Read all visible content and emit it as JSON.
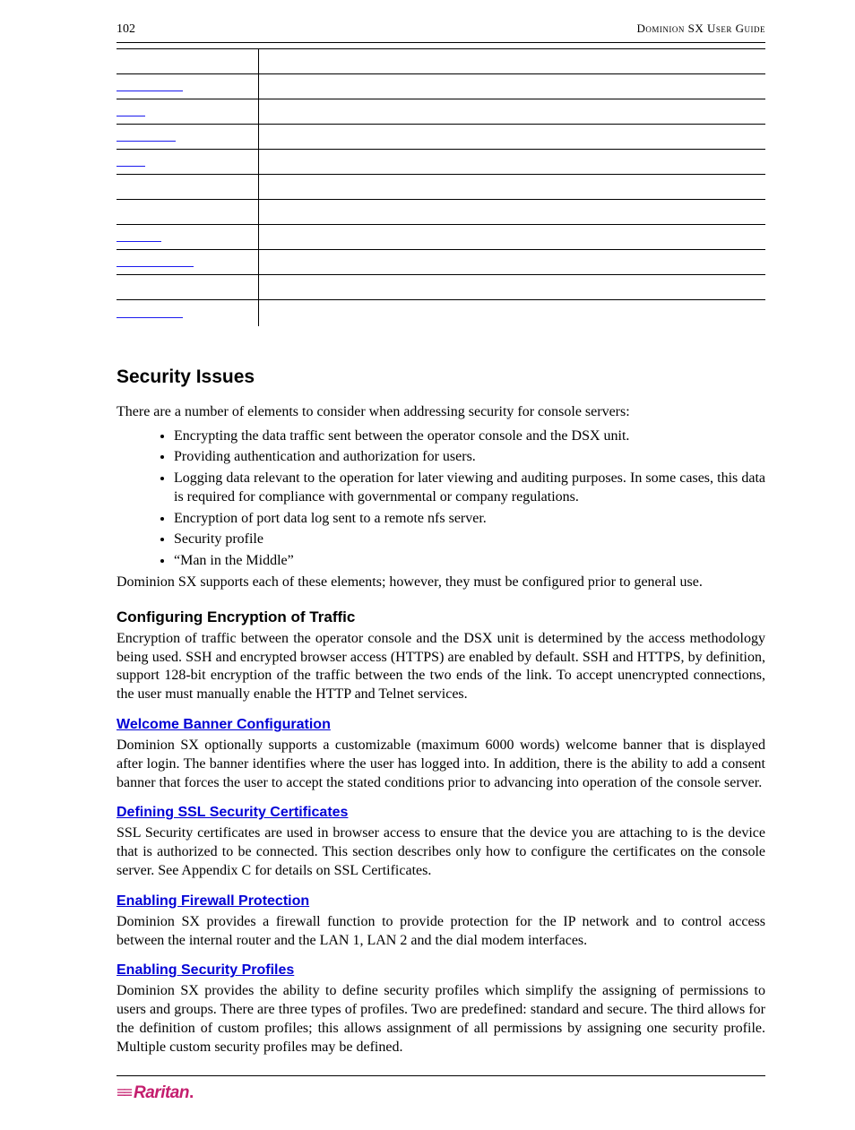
{
  "header": {
    "page_number": "102",
    "guide_title": "Dominion SX User Guide"
  },
  "table_rows": [
    {
      "link_width": 0
    },
    {
      "link_width": 74
    },
    {
      "link_width": 32
    },
    {
      "link_width": 66
    },
    {
      "link_width": 32
    },
    {
      "link_width": 0
    },
    {
      "link_width": 0
    },
    {
      "link_width": 50
    },
    {
      "link_width": 86
    },
    {
      "link_width": 0
    },
    {
      "link_width": 74
    }
  ],
  "section_heading": "Security Issues",
  "intro": "There are a number of elements to consider when addressing security for console servers:",
  "bullets": [
    "Encrypting the data traffic sent between the operator console and the DSX unit.",
    "Providing authentication and authorization for users.",
    "Logging data relevant to the operation for later viewing and auditing purposes. In some cases, this data is required for compliance with governmental or company regulations.",
    "Encryption of port data log sent to a remote nfs server.",
    "Security profile",
    "“Man in the Middle”"
  ],
  "after_bullets": "Dominion SX supports each of these elements; however, they must be configured prior to general use.",
  "subsections": [
    {
      "heading": "Configuring Encryption of Traffic",
      "is_link": false,
      "body": "Encryption of traffic between the operator console and the DSX unit is determined by the access methodology being used. SSH and encrypted browser access (HTTPS) are enabled by default. SSH and HTTPS, by definition, support 128-bit encryption of the traffic between the two ends of the link. To accept unencrypted connections, the user must manually enable the HTTP and Telnet services."
    },
    {
      "heading": "Welcome Banner Configuration",
      "is_link": true,
      "body": "Dominion SX optionally supports a customizable (maximum 6000 words) welcome banner that is displayed after login. The banner identifies where the user has logged into. In addition, there is the ability to add a consent banner that forces the user to accept the stated conditions prior to advancing into operation of the console server."
    },
    {
      "heading": "Defining SSL Security Certificates",
      "is_link": true,
      "body": "SSL Security certificates are used in browser access to ensure that the device you are attaching to is the device that is authorized to be connected. This section describes only how to configure the certificates on the console server. See Appendix C for details on SSL Certificates."
    },
    {
      "heading": "Enabling Firewall Protection",
      "is_link": true,
      "body": "Dominion SX provides a firewall function to provide protection for the IP network and to control access between the internal router and the LAN 1, LAN 2 and the dial modem interfaces."
    },
    {
      "heading": "Enabling Security Profiles",
      "is_link": true,
      "body": "Dominion SX provides the ability to define security profiles which simplify the assigning of permissions to users and groups. There are three types of profiles. Two are predefined: standard and secure. The third allows for the definition of custom profiles; this allows assignment of all permissions by assigning one security profile. Multiple custom security profiles may be defined."
    }
  ],
  "logo": {
    "glyph": "≡≡",
    "text": "Raritan",
    "dot": "."
  },
  "colors": {
    "link_color": "#0000d6",
    "brand_color": "#c41e6e",
    "rule_color": "#000000"
  }
}
